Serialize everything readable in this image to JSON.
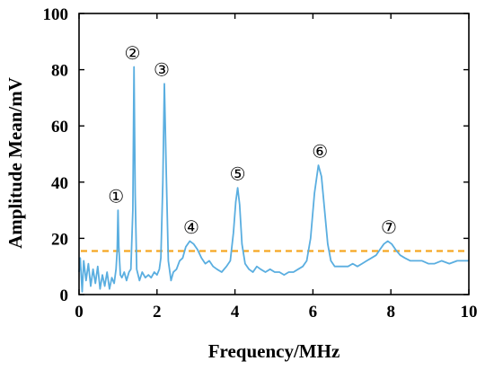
{
  "chart_data": {
    "type": "line",
    "xlabel": "Frequency/MHz",
    "ylabel": "Amplitude Mean/mV",
    "xlim": [
      0,
      10
    ],
    "ylim": [
      0,
      100
    ],
    "xticks": [
      "0",
      "2",
      "4",
      "6",
      "8",
      "10"
    ],
    "yticks": [
      "0",
      "20",
      "40",
      "60",
      "80",
      "100"
    ],
    "grid": false,
    "colors": {
      "series": "#5aaee0",
      "threshold": "#f5a623"
    },
    "series": [
      {
        "points": [
          [
            0.0,
            8
          ],
          [
            0.03,
            13
          ],
          [
            0.08,
            1
          ],
          [
            0.12,
            12
          ],
          [
            0.18,
            5
          ],
          [
            0.24,
            11
          ],
          [
            0.3,
            3
          ],
          [
            0.36,
            9
          ],
          [
            0.42,
            4
          ],
          [
            0.48,
            10
          ],
          [
            0.54,
            2
          ],
          [
            0.6,
            7
          ],
          [
            0.66,
            3
          ],
          [
            0.72,
            8
          ],
          [
            0.78,
            2
          ],
          [
            0.84,
            6
          ],
          [
            0.9,
            4
          ],
          [
            0.95,
            9
          ],
          [
            0.98,
            16
          ],
          [
            1.0,
            30
          ],
          [
            1.02,
            17
          ],
          [
            1.06,
            7
          ],
          [
            1.1,
            6
          ],
          [
            1.16,
            8
          ],
          [
            1.22,
            5
          ],
          [
            1.28,
            8
          ],
          [
            1.33,
            9
          ],
          [
            1.38,
            30
          ],
          [
            1.41,
            81
          ],
          [
            1.44,
            36
          ],
          [
            1.48,
            9
          ],
          [
            1.55,
            5
          ],
          [
            1.62,
            8
          ],
          [
            1.7,
            6
          ],
          [
            1.78,
            7
          ],
          [
            1.85,
            6
          ],
          [
            1.93,
            8
          ],
          [
            2.0,
            7
          ],
          [
            2.06,
            9
          ],
          [
            2.1,
            13
          ],
          [
            2.15,
            40
          ],
          [
            2.19,
            75
          ],
          [
            2.24,
            42
          ],
          [
            2.29,
            12
          ],
          [
            2.36,
            5
          ],
          [
            2.42,
            8
          ],
          [
            2.5,
            9
          ],
          [
            2.58,
            12
          ],
          [
            2.66,
            13
          ],
          [
            2.74,
            17
          ],
          [
            2.84,
            19
          ],
          [
            2.94,
            18
          ],
          [
            3.04,
            16
          ],
          [
            3.14,
            13
          ],
          [
            3.24,
            11
          ],
          [
            3.34,
            12
          ],
          [
            3.44,
            10
          ],
          [
            3.54,
            9
          ],
          [
            3.66,
            8
          ],
          [
            3.78,
            10
          ],
          [
            3.88,
            12
          ],
          [
            3.96,
            22
          ],
          [
            4.02,
            33
          ],
          [
            4.07,
            38
          ],
          [
            4.12,
            32
          ],
          [
            4.18,
            18
          ],
          [
            4.26,
            11
          ],
          [
            4.36,
            9
          ],
          [
            4.46,
            8
          ],
          [
            4.56,
            10
          ],
          [
            4.66,
            9
          ],
          [
            4.78,
            8
          ],
          [
            4.9,
            9
          ],
          [
            5.02,
            8
          ],
          [
            5.14,
            8
          ],
          [
            5.26,
            7
          ],
          [
            5.38,
            8
          ],
          [
            5.5,
            8
          ],
          [
            5.62,
            9
          ],
          [
            5.74,
            10
          ],
          [
            5.84,
            12
          ],
          [
            5.94,
            20
          ],
          [
            6.04,
            36
          ],
          [
            6.14,
            46
          ],
          [
            6.22,
            42
          ],
          [
            6.3,
            30
          ],
          [
            6.38,
            18
          ],
          [
            6.46,
            12
          ],
          [
            6.56,
            10
          ],
          [
            6.66,
            10
          ],
          [
            6.78,
            10
          ],
          [
            6.9,
            10
          ],
          [
            7.02,
            11
          ],
          [
            7.14,
            10
          ],
          [
            7.26,
            11
          ],
          [
            7.38,
            12
          ],
          [
            7.5,
            13
          ],
          [
            7.62,
            14
          ],
          [
            7.72,
            16
          ],
          [
            7.82,
            18
          ],
          [
            7.92,
            19
          ],
          [
            8.02,
            18
          ],
          [
            8.12,
            16
          ],
          [
            8.24,
            14
          ],
          [
            8.36,
            13
          ],
          [
            8.5,
            12
          ],
          [
            8.64,
            12
          ],
          [
            8.8,
            12
          ],
          [
            8.96,
            11
          ],
          [
            9.12,
            11
          ],
          [
            9.3,
            12
          ],
          [
            9.5,
            11
          ],
          [
            9.7,
            12
          ],
          [
            9.9,
            12
          ],
          [
            10.0,
            12
          ]
        ]
      }
    ],
    "threshold": {
      "y": 15.5,
      "style": "dashed"
    },
    "annotations": [
      {
        "text": "①",
        "x": 0.95,
        "y": 35
      },
      {
        "text": "②",
        "x": 1.37,
        "y": 86
      },
      {
        "text": "③",
        "x": 2.12,
        "y": 80
      },
      {
        "text": "④",
        "x": 2.88,
        "y": 24
      },
      {
        "text": "⑤",
        "x": 4.07,
        "y": 43
      },
      {
        "text": "⑥",
        "x": 6.18,
        "y": 51
      },
      {
        "text": "⑦",
        "x": 7.95,
        "y": 24
      }
    ]
  }
}
